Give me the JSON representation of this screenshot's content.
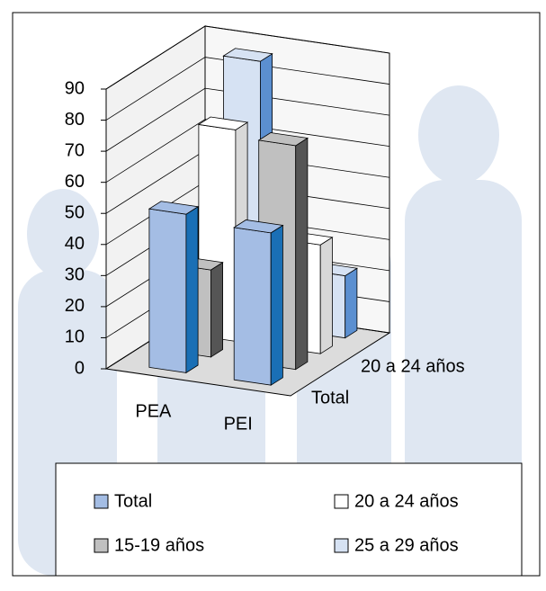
{
  "chart_data": {
    "type": "bar3d",
    "categories": [
      "PEA",
      "PEI"
    ],
    "series": [
      {
        "name": "Total",
        "color": "#a4bde4",
        "side_color": "#1a6fb5",
        "values": [
          51,
          49
        ]
      },
      {
        "name": "15-19 años",
        "color": "#c0c0c0",
        "side_color": "#555555",
        "values": [
          28,
          72
        ]
      },
      {
        "name": "20 a 24 años",
        "color": "#ffffff",
        "side_color": "#d8d8d8",
        "values": [
          68,
          35
        ]
      },
      {
        "name": "25 a 29 años",
        "color": "#d6e2f3",
        "side_color": "#5b8fd0",
        "values": [
          85,
          20
        ]
      }
    ],
    "ylim": [
      0,
      90
    ],
    "yticks": [
      0,
      10,
      20,
      30,
      40,
      50,
      60,
      70,
      80,
      90
    ],
    "grid": true
  }
}
